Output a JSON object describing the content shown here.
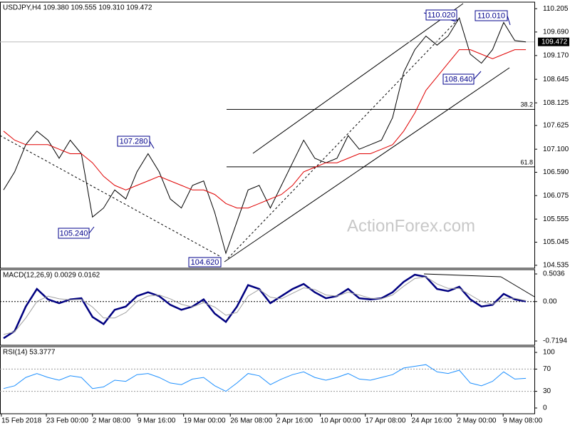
{
  "chart_data": [
    {
      "type": "line",
      "title": "USDJPY,H4  109.380 109.555 109.310 109.472",
      "x": [
        0,
        1,
        2,
        3,
        4,
        5,
        6,
        7,
        8,
        9,
        10,
        11,
        12,
        13,
        14,
        15,
        16,
        17,
        18,
        19,
        20,
        21,
        22,
        23,
        24,
        25,
        26,
        27,
        28,
        29,
        30,
        31,
        32,
        33,
        34,
        35,
        36,
        37,
        38,
        39,
        40,
        41,
        42,
        43,
        44,
        45,
        46,
        47
      ],
      "xlim": [
        -0.32,
        47.76
      ],
      "xticks": [
        {
          "value": -0.2,
          "label": "15 Feb 2018"
        },
        {
          "value": 3.85,
          "label": "23 Feb 00:00"
        },
        {
          "value": 8,
          "label": "2 Mar 08:00"
        },
        {
          "value": 12.05,
          "label": "9 Mar 16:00"
        },
        {
          "value": 16.2,
          "label": "19 Mar 00:00"
        },
        {
          "value": 20.4,
          "label": "26 Mar 08:00"
        },
        {
          "value": 24.55,
          "label": "2 Apr 16:00"
        },
        {
          "value": 28.5,
          "label": "10 Apr 00:00"
        },
        {
          "value": 32.55,
          "label": "17 Apr 08:00"
        },
        {
          "value": 36.7,
          "label": "24 Apr 16:00"
        },
        {
          "value": 40.8,
          "label": "2 May 00:00"
        },
        {
          "value": 44.95,
          "label": "9 May 08:00"
        }
      ],
      "ylim": [
        104.47,
        110.35
      ],
      "yticks": [
        {
          "value": 110.205,
          "label": "110.205"
        },
        {
          "value": 109.69,
          "label": "109.690"
        },
        {
          "value": 109.17,
          "label": "109.170"
        },
        {
          "value": 108.645,
          "label": "108.645"
        },
        {
          "value": 108.125,
          "label": "108.125"
        },
        {
          "value": 107.625,
          "label": "107.625"
        },
        {
          "value": 107.1,
          "label": "107.100"
        },
        {
          "value": 106.59,
          "label": "106.590"
        },
        {
          "value": 106.075,
          "label": "106.075"
        },
        {
          "value": 105.555,
          "label": "105.555"
        },
        {
          "value": 105.045,
          "label": "105.045"
        },
        {
          "value": 104.535,
          "label": "104.535"
        }
      ],
      "series": [
        {
          "color": "#000000",
          "values": [
            106.2,
            106.6,
            107.2,
            107.5,
            107.3,
            106.9,
            107.3,
            107.0,
            105.6,
            105.8,
            106.2,
            106.0,
            106.6,
            107.0,
            106.6,
            106.0,
            105.8,
            106.3,
            106.4,
            105.7,
            104.8,
            105.5,
            106.2,
            106.3,
            105.8,
            106.3,
            106.8,
            107.3,
            106.9,
            106.8,
            106.9,
            107.4,
            107.1,
            107.2,
            107.3,
            107.8,
            108.8,
            109.3,
            109.6,
            109.4,
            109.6,
            110.0,
            109.2,
            109.0,
            109.3,
            109.9,
            109.5,
            109.472
          ]
        },
        {
          "color": "#e00000",
          "values": [
            107.5,
            107.3,
            107.2,
            107.2,
            107.2,
            107.1,
            107.0,
            107.0,
            106.8,
            106.5,
            106.3,
            106.2,
            106.3,
            106.4,
            106.5,
            106.4,
            106.3,
            106.2,
            106.2,
            106.1,
            105.9,
            105.8,
            105.8,
            105.9,
            106.0,
            106.1,
            106.3,
            106.6,
            106.7,
            106.8,
            106.8,
            106.9,
            107.0,
            107.0,
            107.1,
            107.2,
            107.5,
            107.9,
            108.4,
            108.7,
            109.0,
            109.3,
            109.3,
            109.2,
            109.1,
            109.2,
            109.3,
            109.3
          ]
        }
      ],
      "current_price": 109.472,
      "fib_levels": [
        {
          "label": "38.2",
          "value": 107.98
        },
        {
          "label": "61.8",
          "value": 106.71
        }
      ],
      "annotations": [
        "110.020",
        "110.010",
        "108.640",
        "107.280",
        "105.240",
        "104.620"
      ],
      "watermark": "ActionForex.com"
    },
    {
      "type": "line",
      "title": "MACD(12,26,9) 0.0029 0.0162",
      "ylim": [
        -0.797,
        0.582
      ],
      "yticks": [
        0.5036,
        {
          "value": 0,
          "label": "0.00"
        },
        -0.7194
      ],
      "zero_line": true,
      "series": [
        {
          "color": "#000080",
          "values": [
            -0.67,
            -0.54,
            -0.09,
            0.23,
            0.04,
            -0.03,
            0.04,
            0.06,
            -0.28,
            -0.41,
            -0.15,
            -0.09,
            0.1,
            0.17,
            0.1,
            -0.06,
            -0.15,
            -0.09,
            0.04,
            -0.22,
            -0.37,
            -0.09,
            0.3,
            0.23,
            -0.03,
            0.1,
            0.23,
            0.32,
            0.17,
            0.06,
            0.1,
            0.23,
            0.06,
            0.04,
            0.06,
            0.17,
            0.36,
            0.49,
            0.45,
            0.23,
            0.19,
            0.27,
            0.04,
            -0.09,
            -0.06,
            0.14,
            0.04,
            0.0029
          ]
        },
        {
          "color": "#a0a0a0",
          "values": [
            -0.6,
            -0.55,
            -0.3,
            0.0,
            0.1,
            0.05,
            0.03,
            0.04,
            -0.1,
            -0.3,
            -0.3,
            -0.2,
            0.0,
            0.1,
            0.12,
            0.05,
            -0.05,
            -0.1,
            -0.02,
            -0.1,
            -0.25,
            -0.2,
            0.1,
            0.22,
            0.08,
            0.05,
            0.15,
            0.25,
            0.22,
            0.12,
            0.1,
            0.17,
            0.12,
            0.06,
            0.05,
            0.12,
            0.28,
            0.42,
            0.45,
            0.32,
            0.24,
            0.24,
            0.12,
            0.0,
            -0.05,
            0.06,
            0.06,
            0.0162
          ]
        }
      ]
    },
    {
      "type": "line",
      "title": "RSI(14) 53.3777",
      "ylim": [
        -10.3,
        110.3
      ],
      "yticks": [
        100,
        70,
        30,
        0
      ],
      "levels": [
        70,
        30
      ],
      "series": [
        {
          "color": "#1e90ff",
          "values": [
            35,
            40,
            55,
            62,
            55,
            50,
            58,
            55,
            35,
            38,
            50,
            48,
            60,
            62,
            55,
            45,
            42,
            52,
            55,
            40,
            30,
            45,
            62,
            58,
            42,
            52,
            60,
            65,
            55,
            50,
            55,
            62,
            52,
            50,
            55,
            60,
            72,
            75,
            78,
            65,
            62,
            68,
            45,
            40,
            48,
            65,
            52,
            53.3777
          ]
        }
      ]
    }
  ]
}
